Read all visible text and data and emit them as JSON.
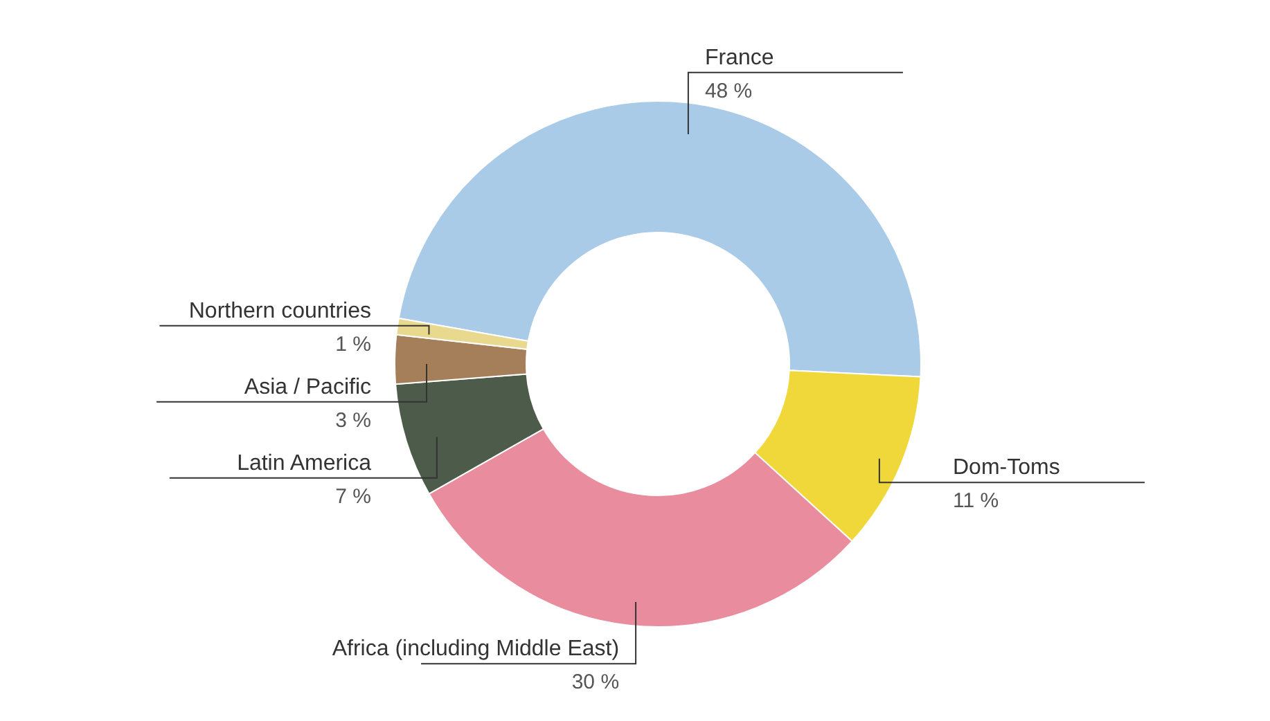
{
  "chart_data": {
    "type": "donut",
    "categories": [
      "France",
      "Dom-Toms",
      "Africa (including Middle East)",
      "Latin America",
      "Asia / Pacific",
      "Northern countries"
    ],
    "values": [
      48,
      11,
      30,
      7,
      3,
      1
    ],
    "value_labels": [
      "48 %",
      "11 %",
      "30 %",
      "7 %",
      "3 %",
      "1 %"
    ],
    "colors": [
      "#a9cbe8",
      "#f0d83a",
      "#e98c9e",
      "#4d5c4a",
      "#a57f5a",
      "#e9d98e"
    ],
    "legend": false
  }
}
